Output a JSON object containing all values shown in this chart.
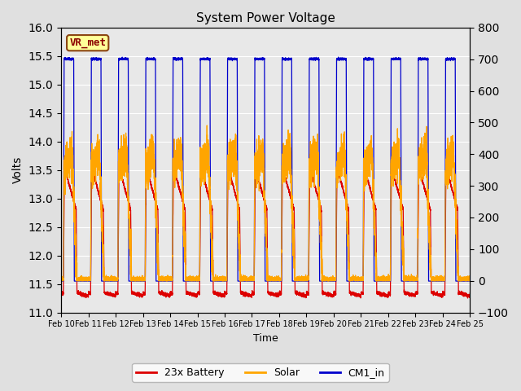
{
  "title": "System Power Voltage",
  "xlabel": "Time",
  "ylabel": "Volts",
  "ylim_left": [
    11.0,
    16.0
  ],
  "ylim_right": [
    -100,
    800
  ],
  "yticks_left": [
    11.0,
    11.5,
    12.0,
    12.5,
    13.0,
    13.5,
    14.0,
    14.5,
    15.0,
    15.5,
    16.0
  ],
  "yticks_right": [
    -100,
    0,
    100,
    200,
    300,
    400,
    500,
    600,
    700,
    800
  ],
  "fig_bg_color": "#e0e0e0",
  "plot_bg_color": "#e8e8e8",
  "line_colors": {
    "battery": "#dd0000",
    "solar": "#ffa500",
    "cm1": "#0000cc"
  },
  "legend_labels": [
    "23x Battery",
    "Solar",
    "CM1_in"
  ],
  "annotation_text": "VR_met",
  "annotation_box_color": "#ffff99",
  "annotation_text_color": "#8B0000",
  "xtick_labels": [
    "Feb 10",
    "Feb 11",
    "Feb 12",
    "Feb 13",
    "Feb 14",
    "Feb 15",
    "Feb 16",
    "Feb 17",
    "Feb 18",
    "Feb 19",
    "Feb 20",
    "Feb 21",
    "Feb 22",
    "Feb 23",
    "Feb 24",
    "Feb 25"
  ]
}
